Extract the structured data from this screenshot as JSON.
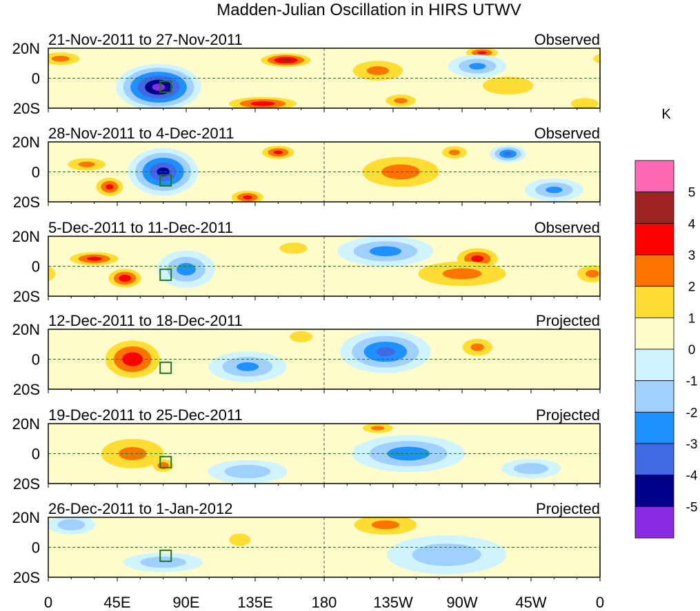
{
  "title": "Madden-Julian Oscillation in HIRS UTWV",
  "chart_data": {
    "type": "heatmap",
    "title": "Madden-Julian Oscillation in HIRS UTWV",
    "units": "K",
    "xlim": [
      0,
      360
    ],
    "ylim": [
      -20,
      20
    ],
    "x_ticks": [
      "0",
      "45E",
      "90E",
      "135E",
      "180",
      "135W",
      "90W",
      "45W",
      "0"
    ],
    "y_ticks": [
      "20N",
      "0",
      "20S"
    ],
    "colorbar": {
      "label": "K",
      "levels": [
        "5",
        "4",
        "3",
        "2",
        "1",
        "0",
        "-1",
        "-2",
        "-3",
        "-4",
        "-5"
      ],
      "colors": [
        "#ff69b4",
        "#9e2424",
        "#ff0000",
        "#ff7300",
        "#ffdd33",
        "#fffccc",
        "#d0f4ff",
        "#a0d0ff",
        "#1e90ff",
        "#4169e1",
        "#00008b",
        "#8a2be2"
      ]
    },
    "panels": [
      {
        "period": "21-Nov-2011 to 27-Nov-2011",
        "status": "Observed",
        "anomalies": [
          [
            72,
            -6,
            -5.3,
            25,
            14
          ],
          [
            155,
            12,
            4.2,
            18,
            5
          ],
          [
            140,
            -17,
            3.5,
            25,
            5
          ],
          [
            215,
            5,
            2.2,
            20,
            8
          ],
          [
            8,
            13,
            2.3,
            15,
            5
          ],
          [
            283,
            17,
            3.2,
            12,
            4
          ],
          [
            230,
            -15,
            2.2,
            12,
            5
          ],
          [
            300,
            -5,
            1.6,
            22,
            8
          ],
          [
            280,
            8,
            -2.2,
            15,
            6
          ],
          [
            350,
            -17,
            1.6,
            12,
            5
          ]
        ]
      },
      {
        "period": "28-Nov-2011 to 4-Dec-2011",
        "status": "Observed",
        "anomalies": [
          [
            75,
            0,
            -4.3,
            20,
            14
          ],
          [
            40,
            -10,
            3.2,
            10,
            7
          ],
          [
            150,
            13,
            3.2,
            12,
            5
          ],
          [
            130,
            -17,
            3.2,
            12,
            5
          ],
          [
            230,
            0,
            2.4,
            30,
            12
          ],
          [
            25,
            5,
            2.2,
            15,
            5
          ],
          [
            300,
            12,
            -3.2,
            10,
            5
          ],
          [
            265,
            13,
            2.2,
            10,
            5
          ],
          [
            330,
            -12,
            -2.2,
            15,
            6
          ]
        ]
      },
      {
        "period": "5-Dec-2011 to 11-Dec-2011",
        "status": "Observed",
        "anomalies": [
          [
            30,
            5,
            3.3,
            18,
            5
          ],
          [
            50,
            -8,
            3.6,
            12,
            7
          ],
          [
            90,
            -2,
            -2.4,
            15,
            10
          ],
          [
            220,
            10,
            -2.4,
            25,
            8
          ],
          [
            280,
            5,
            3.3,
            15,
            8
          ],
          [
            270,
            -5,
            2.2,
            35,
            10
          ],
          [
            160,
            12,
            1.6,
            12,
            5
          ],
          [
            355,
            -5,
            2.2,
            12,
            7
          ]
        ]
      },
      {
        "period": "12-Dec-2011 to 18-Dec-2011",
        "status": "Projected",
        "anomalies": [
          [
            55,
            0,
            3.6,
            20,
            14
          ],
          [
            220,
            5,
            -3.2,
            25,
            12
          ],
          [
            280,
            8,
            2.2,
            12,
            7
          ],
          [
            130,
            -5,
            -2.2,
            20,
            8
          ],
          [
            165,
            15,
            1.6,
            10,
            5
          ]
        ]
      },
      {
        "period": "19-Dec-2011 to 25-Dec-2011",
        "status": "Projected",
        "anomalies": [
          [
            55,
            0,
            2.2,
            25,
            12
          ],
          [
            75,
            -8,
            2.6,
            8,
            5
          ],
          [
            235,
            0,
            -2.6,
            30,
            10
          ],
          [
            215,
            17,
            2.2,
            12,
            4
          ],
          [
            130,
            -12,
            -1.6,
            20,
            6
          ],
          [
            315,
            -10,
            -1.6,
            15,
            5
          ]
        ]
      },
      {
        "period": "26-Dec-2011 to 1-Jan-2012",
        "status": "Projected",
        "anomalies": [
          [
            220,
            15,
            2.2,
            25,
            8
          ],
          [
            260,
            -5,
            -1.6,
            30,
            10
          ],
          [
            75,
            -10,
            -1.6,
            20,
            5
          ],
          [
            15,
            15,
            -1.6,
            12,
            5
          ],
          [
            125,
            5,
            1.3,
            10,
            6
          ]
        ]
      }
    ]
  }
}
